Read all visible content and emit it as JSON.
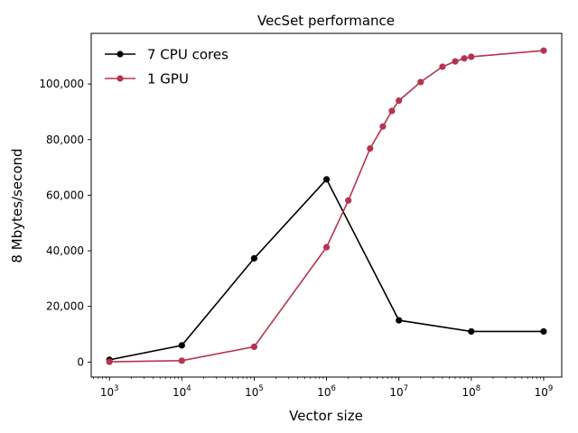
{
  "chart_data": {
    "type": "line",
    "title": "VecSet performance",
    "xlabel": "Vector size",
    "ylabel": "8 Mbytes/second",
    "xscale": "log",
    "xlim": [
      560,
      1780000000
    ],
    "ylim": [
      -5400,
      118200
    ],
    "x_tick_exponents": [
      3,
      4,
      5,
      6,
      7,
      8,
      9
    ],
    "x_tick_base": "10",
    "y_ticks": [
      0,
      20000,
      40000,
      60000,
      80000,
      100000
    ],
    "y_tick_labels": [
      "0",
      "20,000",
      "40,000",
      "60,000",
      "80,000",
      "100,000"
    ],
    "grid": false,
    "legend_position": "upper-left",
    "series": [
      {
        "name": "7 CPU cores",
        "color": "#000000",
        "points": [
          {
            "x": 1000,
            "y": 800
          },
          {
            "x": 10000,
            "y": 6000
          },
          {
            "x": 100000,
            "y": 37300
          },
          {
            "x": 1000000,
            "y": 65700
          },
          {
            "x": 10000000,
            "y": 15000
          },
          {
            "x": 100000000,
            "y": 11000
          },
          {
            "x": 1000000000,
            "y": 11000
          }
        ]
      },
      {
        "name": "1 GPU",
        "color": "#b5344f",
        "points": [
          {
            "x": 1000,
            "y": 100
          },
          {
            "x": 10000,
            "y": 500
          },
          {
            "x": 100000,
            "y": 5500
          },
          {
            "x": 1000000,
            "y": 41300
          },
          {
            "x": 2000000,
            "y": 58100
          },
          {
            "x": 4000000,
            "y": 76800
          },
          {
            "x": 6000000,
            "y": 84700
          },
          {
            "x": 8000000,
            "y": 90300
          },
          {
            "x": 10000000,
            "y": 94000
          },
          {
            "x": 20000000,
            "y": 100700
          },
          {
            "x": 40000000,
            "y": 106200
          },
          {
            "x": 60000000,
            "y": 108100
          },
          {
            "x": 80000000,
            "y": 109200
          },
          {
            "x": 100000000,
            "y": 109800
          },
          {
            "x": 1000000000,
            "y": 112000
          }
        ]
      }
    ]
  }
}
